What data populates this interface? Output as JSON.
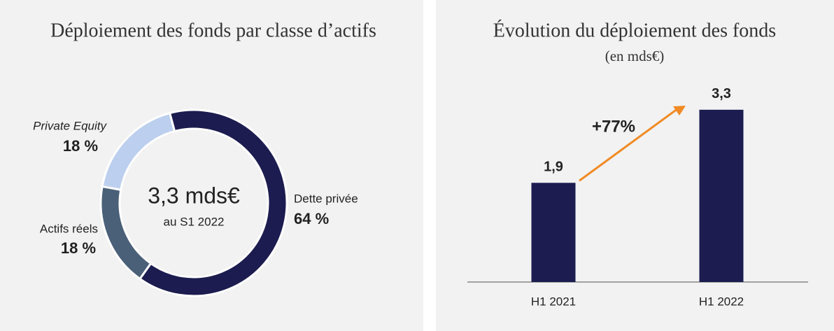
{
  "chart_data": [
    {
      "type": "donut",
      "title": "Déploiement des fonds par classe d’actifs",
      "center_text": "3,3 mds€",
      "center_subtext": "au S1 2022",
      "categories": [
        "Dette privée",
        "Actifs réels",
        "Private Equity"
      ],
      "values": [
        64,
        18,
        18
      ],
      "value_labels": [
        "64 %",
        "18 %",
        "18 %"
      ],
      "colors": [
        "#1c1c50",
        "#4a6078",
        "#bccfee"
      ]
    },
    {
      "type": "bar",
      "title": "Évolution du déploiement des fonds",
      "subtitle": "(en mds€)",
      "categories": [
        "H1 2021",
        "H1 2022"
      ],
      "values": [
        1.9,
        3.3
      ],
      "value_labels": [
        "1,9",
        "3,3"
      ],
      "color": "#1c1c50",
      "annotation": "+77%",
      "annotation_color": "#f08a24"
    }
  ]
}
